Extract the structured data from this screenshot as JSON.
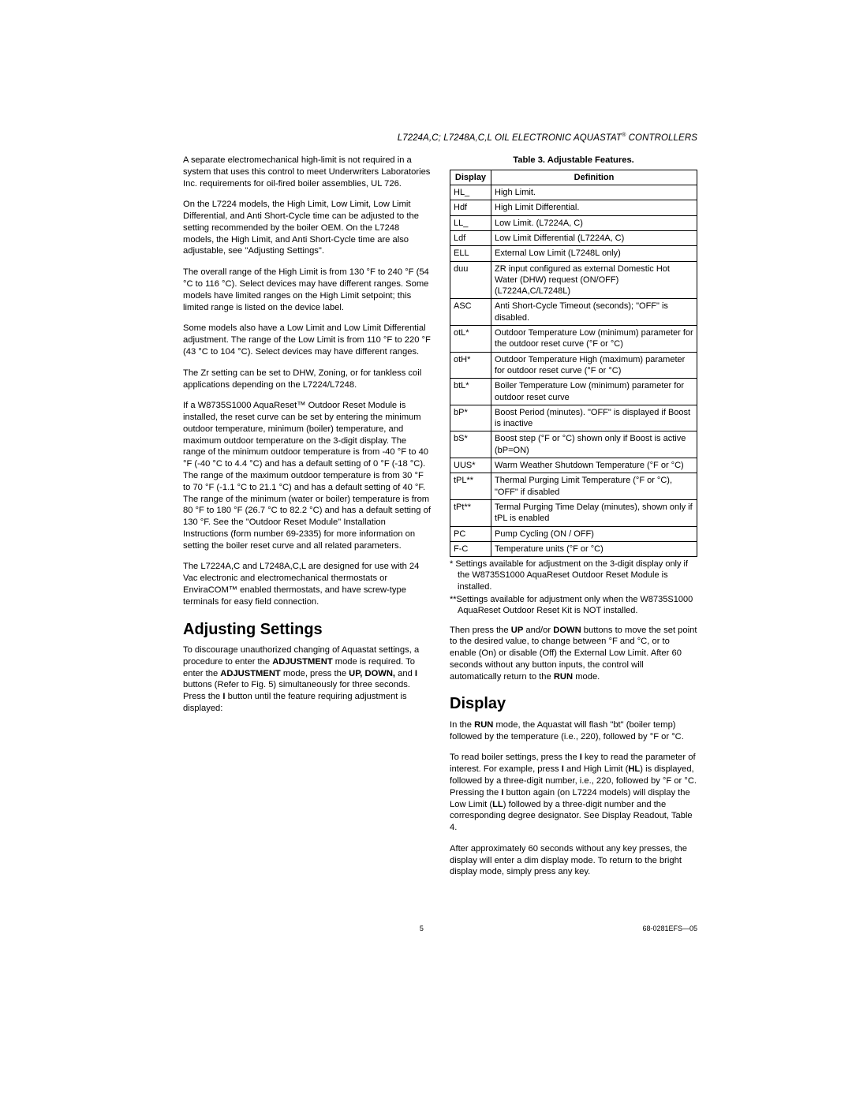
{
  "header": "L7224A,C; L7248A,C,L OIL ELECTRONIC AQUASTAT® CONTROLLERS",
  "left": {
    "p1": "A separate electromechanical high-limit is not required in a system that uses this control to meet Underwriters Laboratories Inc. requirements for oil-fired boiler assemblies, UL 726.",
    "p2": "On the L7224 models, the High Limit, Low Limit, Low Limit Differential, and Anti Short-Cycle time can be adjusted to the setting recommended by the boiler OEM. On the L7248 models, the High Limit, and Anti Short-Cycle time are also adjustable, see \"Adjusting Settings\".",
    "p3": "The overall range of the High Limit is from 130 °F to 240 °F (54 °C to 116 °C). Select devices may have different ranges. Some models have limited ranges on the High Limit setpoint; this limited range is listed on the device label.",
    "p4": "Some models also have a Low Limit and Low Limit Differential adjustment. The range of the Low Limit is from 110 °F to 220 °F (43 °C to 104 °C). Select devices may have different ranges.",
    "p5": "The Zr setting can be set to DHW, Zoning, or for tankless coil applications depending on the L7224/L7248.",
    "p6": "If a W8735S1000 AquaReset™ Outdoor Reset Module is installed, the reset curve can be set by entering the minimum outdoor temperature, minimum (boiler) temperature, and maximum outdoor temperature on the 3-digit display. The range of the minimum outdoor temperature is from -40 °F to 40 °F (-40 °C to 4.4 °C) and has a default setting of 0 °F (-18 °C). The range of the maximum outdoor temperature is from 30 °F to 70 °F (-1.1 °C to 21.1 °C) and has a default setting of 40 °F. The range of the minimum (water or boiler) temperature is from 80 °F to 180 °F (26.7 °C to 82.2 °C) and has a default setting of 130 °F. See the \"Outdoor Reset Module\" Installation Instructions (form number 69-2335) for more information on setting the boiler reset curve and all related parameters.",
    "p7": "The L7224A,C and L7248A,C,L are designed for use with 24 Vac electronic and electromechanical thermostats or EnviraCOM™ enabled thermostats, and have screw-type terminals for easy field connection.",
    "h_adjust": "Adjusting Settings",
    "p8a": "To discourage unauthorized changing of Aquastat settings, a procedure to enter the ",
    "p8b": "ADJUSTMENT",
    "p8c": " mode is required. To enter the ",
    "p8d": "ADJUSTMENT",
    "p8e": " mode, press the ",
    "p8f": "UP, DOWN,",
    "p8g": " and ",
    "p8h": "I",
    "p8i": " buttons (Refer to Fig. 5) simultaneously for three seconds. Press the ",
    "p8j": "I",
    "p8k": " button until the feature requiring adjustment is displayed:"
  },
  "table_caption": "Table 3. Adjustable Features.",
  "th_display": "Display",
  "th_definition": "Definition",
  "rows": [
    {
      "d": "HL_",
      "def": "High Limit."
    },
    {
      "d": "Hdf",
      "def": "High Limit Differential."
    },
    {
      "d": "LL_",
      "def": "Low Limit. (L7224A, C)"
    },
    {
      "d": "Ldf",
      "def": "Low Limit Differential (L7224A, C)"
    },
    {
      "d": "ELL",
      "def": "External Low Limit (L7248L only)"
    },
    {
      "d": "duu",
      "def": "ZR input configured as external Domestic Hot Water (DHW) request (ON/OFF) (L7224A,C/L7248L)"
    },
    {
      "d": "ASC",
      "def": "Anti Short-Cycle Timeout (seconds); \"OFF\" is disabled."
    },
    {
      "d": "otL*",
      "def": "Outdoor Temperature Low (minimum) parameter for the outdoor reset curve (°F or °C)"
    },
    {
      "d": "otH*",
      "def": "Outdoor Temperature High (maximum) parameter for outdoor reset curve (°F or °C)"
    },
    {
      "d": "btL*",
      "def": "Boiler Temperature Low (minimum) parameter for outdoor reset curve"
    },
    {
      "d": "bP*",
      "def": "Boost Period (minutes). \"OFF\" is displayed if Boost is inactive"
    },
    {
      "d": "bS*",
      "def": "Boost step (°F or °C) shown only if Boost is active (bP=ON)"
    },
    {
      "d": "UUS*",
      "def": "Warm Weather Shutdown Temperature (°F or °C)"
    },
    {
      "d": "tPL**",
      "def": "Thermal Purging Limit Temperature (°F or °C), \"OFF\" if disabled"
    },
    {
      "d": "tPt**",
      "def": "Termal Purging Time Delay (minutes), shown only if tPL is enabled"
    },
    {
      "d": "PC",
      "def": "Pump Cycling (ON / OFF)"
    },
    {
      "d": "F-C",
      "def": "Temperature units (°F or °C)"
    }
  ],
  "note1": "* Settings available for adjustment on the 3-digit display only if the W8735S1000 AquaReset Outdoor Reset Module is installed.",
  "note2": "**Settings available for adjustment only when the W8735S1000 AquaReset Outdoor Reset Kit is NOT installed.",
  "right": {
    "p1a": "Then press the ",
    "p1b": "UP",
    "p1c": " and/or ",
    "p1d": "DOWN",
    "p1e": " buttons to move the set point to the desired value, to change between °F and °C, or to enable (On) or disable (Off) the External Low Limit. After 60 seconds without any button inputs, the control will automatically return to the ",
    "p1f": "RUN",
    "p1g": " mode.",
    "h_display": "Display",
    "p2a": "In the ",
    "p2b": "RUN",
    "p2c": " mode, the Aquastat will flash \"bt\" (boiler temp) followed by the temperature (i.e., 220), followed by °F or °C.",
    "p3a": "To read boiler settings, press the ",
    "p3b": "I",
    "p3c": " key to read the parameter of interest. For example, press ",
    "p3d": "I",
    "p3e": " and High Limit (",
    "p3f": "HL",
    "p3g": ") is displayed, followed by a three-digit number, i.e., 220, followed by °F or °C. Pressing the ",
    "p3h": "I",
    "p3i": " button again (on L7224 models) will display the Low Limit (",
    "p3j": "LL",
    "p3k": ") followed by a three-digit number and the corresponding degree designator. See Display Readout, Table 4.",
    "p4": "After approximately 60 seconds without any key presses, the display will enter a dim display mode. To return to the bright display mode, simply press any key."
  },
  "footer": {
    "page": "5",
    "doc": "68-0281EFS—05"
  }
}
